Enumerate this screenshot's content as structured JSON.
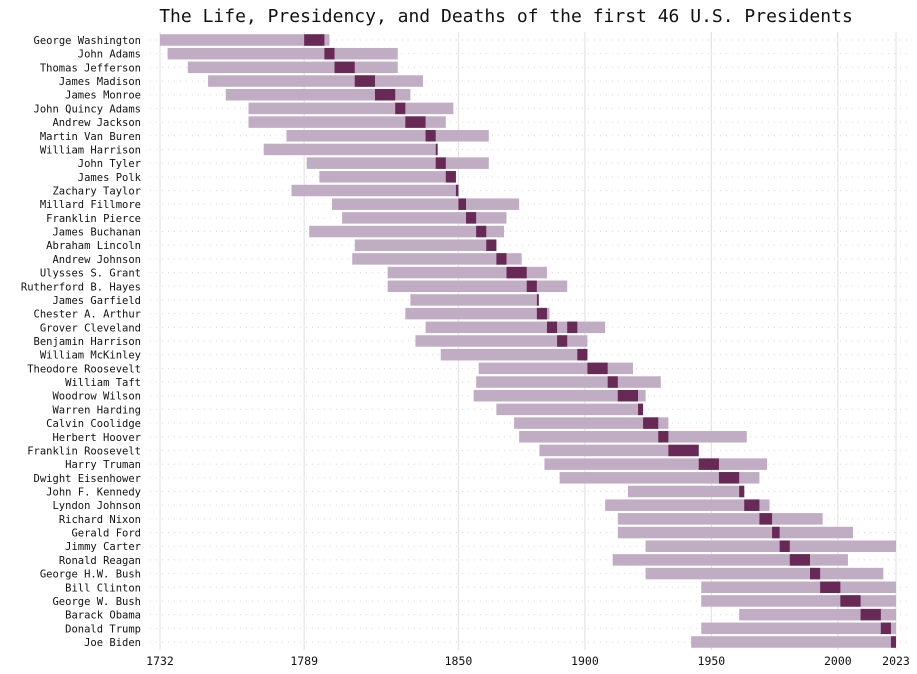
{
  "chart_data": {
    "type": "bar",
    "subtype": "gantt",
    "title": "The Life, Presidency, and Deaths of the first 46 U.S. Presidents",
    "xlabel": "",
    "ylabel": "",
    "xlim": [
      1732,
      2023
    ],
    "xticks": [
      1732,
      1789,
      1850,
      1900,
      1950,
      2000,
      2023
    ],
    "grid": {
      "vertical": true,
      "horizontal_dotted": true
    },
    "colors": {
      "life": "#c0adc3",
      "presidency": "#682956",
      "grid": "#e4e4e4"
    },
    "presidents": [
      {
        "name": "George Washington",
        "born": 1732,
        "died": 1799,
        "terms": [
          [
            1789,
            1797
          ]
        ]
      },
      {
        "name": "John Adams",
        "born": 1735,
        "died": 1826,
        "terms": [
          [
            1797,
            1801
          ]
        ]
      },
      {
        "name": "Thomas Jefferson",
        "born": 1743,
        "died": 1826,
        "terms": [
          [
            1801,
            1809
          ]
        ]
      },
      {
        "name": "James Madison",
        "born": 1751,
        "died": 1836,
        "terms": [
          [
            1809,
            1817
          ]
        ]
      },
      {
        "name": "James Monroe",
        "born": 1758,
        "died": 1831,
        "terms": [
          [
            1817,
            1825
          ]
        ]
      },
      {
        "name": "John Quincy Adams",
        "born": 1767,
        "died": 1848,
        "terms": [
          [
            1825,
            1829
          ]
        ]
      },
      {
        "name": "Andrew Jackson",
        "born": 1767,
        "died": 1845,
        "terms": [
          [
            1829,
            1837
          ]
        ]
      },
      {
        "name": "Martin Van Buren",
        "born": 1782,
        "died": 1862,
        "terms": [
          [
            1837,
            1841
          ]
        ]
      },
      {
        "name": "William Harrison",
        "born": 1773,
        "died": 1841,
        "terms": [
          [
            1841,
            1841
          ]
        ]
      },
      {
        "name": "John Tyler",
        "born": 1790,
        "died": 1862,
        "terms": [
          [
            1841,
            1845
          ]
        ]
      },
      {
        "name": "James Polk",
        "born": 1795,
        "died": 1849,
        "terms": [
          [
            1845,
            1849
          ]
        ]
      },
      {
        "name": "Zachary Taylor",
        "born": 1784,
        "died": 1850,
        "terms": [
          [
            1849,
            1850
          ]
        ]
      },
      {
        "name": "Millard Fillmore",
        "born": 1800,
        "died": 1874,
        "terms": [
          [
            1850,
            1853
          ]
        ]
      },
      {
        "name": "Franklin Pierce",
        "born": 1804,
        "died": 1869,
        "terms": [
          [
            1853,
            1857
          ]
        ]
      },
      {
        "name": "James Buchanan",
        "born": 1791,
        "died": 1868,
        "terms": [
          [
            1857,
            1861
          ]
        ]
      },
      {
        "name": "Abraham Lincoln",
        "born": 1809,
        "died": 1865,
        "terms": [
          [
            1861,
            1865
          ]
        ]
      },
      {
        "name": "Andrew Johnson",
        "born": 1808,
        "died": 1875,
        "terms": [
          [
            1865,
            1869
          ]
        ]
      },
      {
        "name": "Ulysses S. Grant",
        "born": 1822,
        "died": 1885,
        "terms": [
          [
            1869,
            1877
          ]
        ]
      },
      {
        "name": "Rutherford B. Hayes",
        "born": 1822,
        "died": 1893,
        "terms": [
          [
            1877,
            1881
          ]
        ]
      },
      {
        "name": "James Garfield",
        "born": 1831,
        "died": 1881,
        "terms": [
          [
            1881,
            1881
          ]
        ]
      },
      {
        "name": "Chester A. Arthur",
        "born": 1829,
        "died": 1886,
        "terms": [
          [
            1881,
            1885
          ]
        ]
      },
      {
        "name": "Grover Cleveland",
        "born": 1837,
        "died": 1908,
        "terms": [
          [
            1885,
            1889
          ],
          [
            1893,
            1897
          ]
        ]
      },
      {
        "name": "Benjamin Harrison",
        "born": 1833,
        "died": 1901,
        "terms": [
          [
            1889,
            1893
          ]
        ]
      },
      {
        "name": "William McKinley",
        "born": 1843,
        "died": 1901,
        "terms": [
          [
            1897,
            1901
          ]
        ]
      },
      {
        "name": "Theodore Roosevelt",
        "born": 1858,
        "died": 1919,
        "terms": [
          [
            1901,
            1909
          ]
        ]
      },
      {
        "name": "William Taft",
        "born": 1857,
        "died": 1930,
        "terms": [
          [
            1909,
            1913
          ]
        ]
      },
      {
        "name": "Woodrow Wilson",
        "born": 1856,
        "died": 1924,
        "terms": [
          [
            1913,
            1921
          ]
        ]
      },
      {
        "name": "Warren Harding",
        "born": 1865,
        "died": 1923,
        "terms": [
          [
            1921,
            1923
          ]
        ]
      },
      {
        "name": "Calvin Coolidge",
        "born": 1872,
        "died": 1933,
        "terms": [
          [
            1923,
            1929
          ]
        ]
      },
      {
        "name": "Herbert Hoover",
        "born": 1874,
        "died": 1964,
        "terms": [
          [
            1929,
            1933
          ]
        ]
      },
      {
        "name": "Franklin Roosevelt",
        "born": 1882,
        "died": 1945,
        "terms": [
          [
            1933,
            1945
          ]
        ]
      },
      {
        "name": "Harry Truman",
        "born": 1884,
        "died": 1972,
        "terms": [
          [
            1945,
            1953
          ]
        ]
      },
      {
        "name": "Dwight Eisenhower",
        "born": 1890,
        "died": 1969,
        "terms": [
          [
            1953,
            1961
          ]
        ]
      },
      {
        "name": "John F. Kennedy",
        "born": 1917,
        "died": 1963,
        "terms": [
          [
            1961,
            1963
          ]
        ]
      },
      {
        "name": "Lyndon Johnson",
        "born": 1908,
        "died": 1973,
        "terms": [
          [
            1963,
            1969
          ]
        ]
      },
      {
        "name": "Richard Nixon",
        "born": 1913,
        "died": 1994,
        "terms": [
          [
            1969,
            1974
          ]
        ]
      },
      {
        "name": "Gerald Ford",
        "born": 1913,
        "died": 2006,
        "terms": [
          [
            1974,
            1977
          ]
        ]
      },
      {
        "name": "Jimmy Carter",
        "born": 1924,
        "died": null,
        "terms": [
          [
            1977,
            1981
          ]
        ]
      },
      {
        "name": "Ronald Reagan",
        "born": 1911,
        "died": 2004,
        "terms": [
          [
            1981,
            1989
          ]
        ]
      },
      {
        "name": "George H.W. Bush",
        "born": 1924,
        "died": 2018,
        "terms": [
          [
            1989,
            1993
          ]
        ]
      },
      {
        "name": "Bill Clinton",
        "born": 1946,
        "died": null,
        "terms": [
          [
            1993,
            2001
          ]
        ]
      },
      {
        "name": "George W. Bush",
        "born": 1946,
        "died": null,
        "terms": [
          [
            2001,
            2009
          ]
        ]
      },
      {
        "name": "Barack Obama",
        "born": 1961,
        "died": null,
        "terms": [
          [
            2009,
            2017
          ]
        ]
      },
      {
        "name": "Donald Trump",
        "born": 1946,
        "died": null,
        "terms": [
          [
            2017,
            2021
          ]
        ]
      },
      {
        "name": "Joe Biden",
        "born": 1942,
        "died": null,
        "terms": [
          [
            2021,
            2023
          ]
        ]
      }
    ]
  }
}
